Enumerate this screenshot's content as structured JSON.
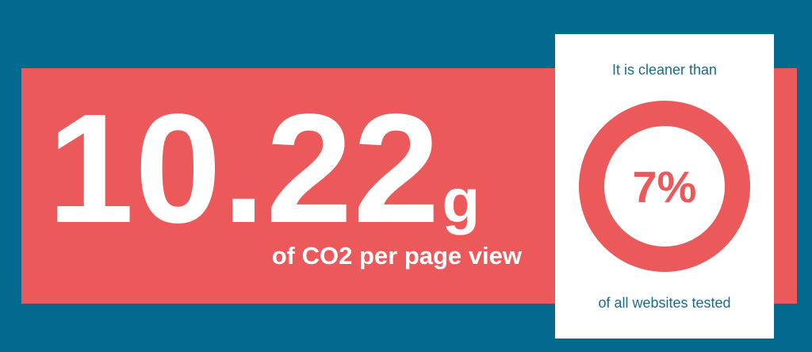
{
  "colors": {
    "background": "#03698f",
    "band": "#ec595a",
    "card": "#ffffff",
    "text_on_band": "#ffffff",
    "card_text": "#1b6b8a",
    "ring": "#ec595a"
  },
  "emissions": {
    "value": "10.22",
    "unit": "g",
    "caption": "of CO2 per page view"
  },
  "comparison": {
    "top_text": "It is cleaner than",
    "percent_label": "7%",
    "percent": 7,
    "bottom_text": "of all websites tested"
  }
}
